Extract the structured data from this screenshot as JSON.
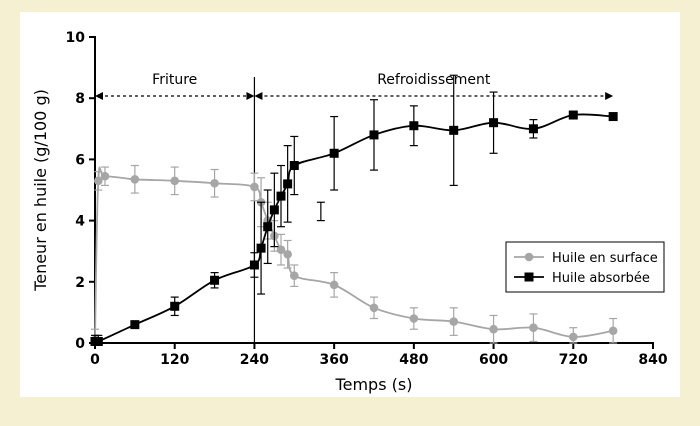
{
  "chart_data": {
    "type": "line",
    "title": "",
    "xlabel": "Temps (s)",
    "ylabel": "Teneur en huile (g/100 g)",
    "xlim": [
      0,
      840
    ],
    "ylim": [
      0,
      10
    ],
    "xticks": [
      0,
      120,
      240,
      360,
      480,
      600,
      720,
      840
    ],
    "yticks": [
      0,
      2,
      4,
      6,
      8,
      10
    ],
    "grid": false,
    "legend_position": "center-right",
    "phases": [
      {
        "label": "Friture",
        "start": 0,
        "end": 240
      },
      {
        "label": "Refroidissement",
        "start": 240,
        "end": 780
      }
    ],
    "divider_x": 240,
    "series": [
      {
        "name": "Huile en surface",
        "marker": "circle",
        "color": "#a6a6a6",
        "x": [
          0,
          5,
          15,
          60,
          120,
          180,
          240,
          250,
          260,
          270,
          280,
          290,
          300,
          360,
          420,
          480,
          540,
          600,
          660,
          720,
          780
        ],
        "y": [
          0.1,
          5.3,
          5.45,
          5.35,
          5.3,
          5.22,
          5.1,
          4.6,
          4.0,
          3.5,
          3.05,
          2.9,
          2.2,
          1.9,
          1.15,
          0.8,
          0.7,
          0.45,
          0.5,
          0.2,
          0.4
        ],
        "err": [
          0.35,
          0.3,
          0.3,
          0.45,
          0.45,
          0.45,
          0.45,
          0.8,
          0.6,
          0.5,
          0.5,
          0.45,
          0.35,
          0.4,
          0.35,
          0.35,
          0.45,
          0.45,
          0.45,
          0.3,
          0.4
        ]
      },
      {
        "name": "Huile absorbée",
        "marker": "square",
        "color": "#000000",
        "x": [
          0,
          5,
          60,
          120,
          180,
          240,
          250,
          260,
          270,
          280,
          290,
          300,
          360,
          420,
          480,
          540,
          600,
          660,
          720,
          780
        ],
        "y": [
          0.05,
          0.05,
          0.6,
          1.2,
          2.05,
          2.55,
          3.1,
          3.8,
          4.35,
          4.8,
          5.2,
          5.8,
          6.2,
          6.8,
          7.1,
          6.95,
          7.2,
          7.0,
          7.45,
          7.4
        ],
        "err": [
          0.2,
          0.2,
          0.1,
          0.3,
          0.25,
          0.4,
          1.5,
          1.2,
          1.2,
          1.0,
          1.25,
          0.95,
          1.2,
          1.15,
          0.65,
          1.8,
          1.0,
          0.3,
          0.1,
          0.1
        ]
      }
    ],
    "extra_error_bar": {
      "x": 340,
      "low": 4.0,
      "high": 4.6
    }
  }
}
